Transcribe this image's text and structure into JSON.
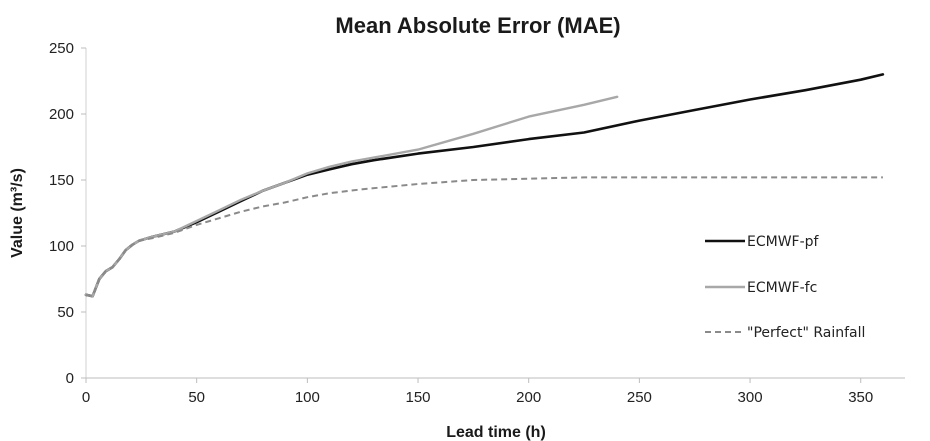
{
  "chart_data": {
    "type": "line",
    "title": "Mean Absolute Error (MAE)",
    "xlabel": "Lead time (h)",
    "ylabel": "Value (m³/s)",
    "xlim": [
      0,
      370
    ],
    "ylim": [
      0,
      250
    ],
    "xticks": [
      "0",
      "50",
      "100",
      "150",
      "200",
      "250",
      "300",
      "350"
    ],
    "yticks": [
      "0",
      "50",
      "100",
      "150",
      "200",
      "250"
    ],
    "grid": false,
    "legend_position": "right",
    "series": [
      {
        "name": "ECMWF-pf",
        "color": "#111111",
        "style": "solid",
        "x": [
          0,
          3,
          6,
          9,
          12,
          15,
          18,
          21,
          24,
          30,
          40,
          50,
          60,
          70,
          80,
          90,
          100,
          110,
          120,
          130,
          150,
          175,
          200,
          225,
          250,
          275,
          300,
          325,
          350,
          360
        ],
        "y": [
          63,
          62,
          75,
          81,
          84,
          90,
          97,
          101,
          104,
          107,
          111,
          118,
          126,
          134,
          142,
          148,
          154,
          158,
          162,
          165,
          170,
          175,
          181,
          186,
          195,
          203,
          211,
          218,
          226,
          230
        ]
      },
      {
        "name": "ECMWF-fc",
        "color": "#a8a8a8",
        "style": "solid",
        "x": [
          0,
          3,
          6,
          9,
          12,
          15,
          18,
          21,
          24,
          30,
          40,
          50,
          60,
          70,
          80,
          90,
          100,
          110,
          120,
          130,
          150,
          175,
          200,
          225,
          240
        ],
        "y": [
          63,
          62,
          75,
          81,
          84,
          90,
          97,
          101,
          104,
          107,
          111,
          119,
          127,
          135,
          142,
          148,
          155,
          160,
          164,
          167,
          173,
          185,
          198,
          207,
          213
        ]
      },
      {
        "name": "\"Perfect\" Rainfall",
        "color": "#8a8a8a",
        "style": "dashed",
        "x": [
          0,
          3,
          6,
          9,
          12,
          15,
          18,
          21,
          24,
          30,
          40,
          50,
          60,
          70,
          80,
          90,
          100,
          110,
          125,
          150,
          175,
          200,
          225,
          250,
          300,
          360
        ],
        "y": [
          63,
          62,
          75,
          81,
          84,
          90,
          97,
          101,
          104,
          106,
          110,
          116,
          121,
          126,
          130,
          133,
          137,
          140,
          143,
          147,
          150,
          151,
          152,
          152,
          152,
          152
        ]
      }
    ]
  }
}
